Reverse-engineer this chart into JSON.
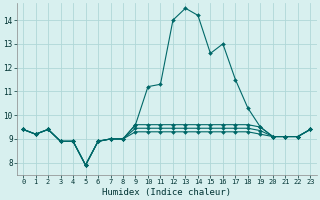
{
  "xlabel": "Humidex (Indice chaleur)",
  "background_color": "#d8f0ef",
  "grid_color": "#b0d8d8",
  "line_color": "#006868",
  "xlim": [
    -0.5,
    23.5
  ],
  "ylim": [
    7.5,
    14.7
  ],
  "yticks": [
    8,
    9,
    10,
    11,
    12,
    13,
    14
  ],
  "xticks": [
    0,
    1,
    2,
    3,
    4,
    5,
    6,
    7,
    8,
    9,
    10,
    11,
    12,
    13,
    14,
    15,
    16,
    17,
    18,
    19,
    20,
    21,
    22,
    23
  ],
  "series": [
    [
      9.4,
      9.2,
      9.4,
      8.9,
      8.9,
      7.9,
      8.9,
      9.0,
      9.0,
      9.6,
      11.2,
      11.3,
      14.0,
      14.5,
      14.2,
      12.6,
      13.0,
      11.5,
      10.3,
      9.5,
      9.1,
      9.1,
      9.1,
      9.4
    ],
    [
      9.4,
      9.2,
      9.4,
      8.9,
      8.9,
      7.9,
      8.9,
      9.0,
      9.0,
      9.6,
      9.6,
      9.6,
      9.6,
      9.6,
      9.6,
      9.6,
      9.6,
      9.6,
      9.6,
      9.5,
      9.1,
      9.1,
      9.1,
      9.4
    ],
    [
      9.4,
      9.2,
      9.4,
      8.9,
      8.9,
      7.9,
      8.9,
      9.0,
      9.0,
      9.45,
      9.45,
      9.45,
      9.45,
      9.45,
      9.45,
      9.45,
      9.45,
      9.45,
      9.45,
      9.35,
      9.1,
      9.1,
      9.1,
      9.4
    ],
    [
      9.4,
      9.2,
      9.4,
      8.9,
      8.9,
      7.9,
      8.9,
      9.0,
      9.0,
      9.3,
      9.3,
      9.3,
      9.3,
      9.3,
      9.3,
      9.3,
      9.3,
      9.3,
      9.3,
      9.2,
      9.1,
      9.1,
      9.1,
      9.4
    ]
  ],
  "markersize": 2.0,
  "linewidth": 0.8
}
